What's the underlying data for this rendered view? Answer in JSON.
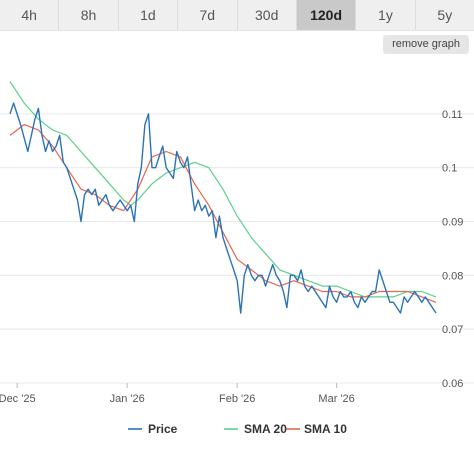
{
  "tabs": [
    {
      "label": "4h",
      "active": false
    },
    {
      "label": "8h",
      "active": false
    },
    {
      "label": "1d",
      "active": false
    },
    {
      "label": "7d",
      "active": false
    },
    {
      "label": "30d",
      "active": false
    },
    {
      "label": "120d",
      "active": true
    },
    {
      "label": "1y",
      "active": false
    },
    {
      "label": "5y",
      "active": false
    }
  ],
  "remove_graph_label": "remove graph",
  "colors": {
    "price": "#2b73b6",
    "sma20": "#5dd08a",
    "sma10": "#e8654f",
    "grid": "#e9e9e9"
  },
  "chart_data": {
    "type": "line",
    "title": "",
    "xlabel": "",
    "ylabel": "",
    "xlim": [
      0,
      120
    ],
    "ylim": [
      0.06,
      0.12
    ],
    "y_ticks": [
      0.06,
      0.07,
      0.08,
      0.09,
      0.1,
      0.11
    ],
    "y_tick_labels": [
      "0.06",
      "0.07",
      "0.08",
      "0.09",
      "0.1",
      "0.11"
    ],
    "x_ticks": [
      {
        "x": 2,
        "label": "Dec '25"
      },
      {
        "x": 33,
        "label": "Jan '26"
      },
      {
        "x": 64,
        "label": "Feb '26"
      },
      {
        "x": 92,
        "label": "Mar '26"
      }
    ],
    "grid": true,
    "legend_position": "bottom-center",
    "series": [
      {
        "name": "Price",
        "x": [
          0,
          1,
          3,
          5,
          7,
          8,
          9,
          10,
          11,
          12,
          13,
          14,
          15,
          16,
          17,
          18,
          19,
          20,
          21,
          22,
          23,
          24,
          25,
          26,
          27,
          28,
          29,
          30,
          31,
          32,
          33,
          34,
          35,
          36,
          37,
          38,
          39,
          40,
          41,
          42,
          43,
          44,
          45,
          46,
          47,
          48,
          49,
          50,
          51,
          52,
          53,
          54,
          55,
          56,
          57,
          58,
          59,
          60,
          61,
          62,
          63,
          64,
          65,
          66,
          67,
          68,
          69,
          70,
          71,
          72,
          73,
          74,
          75,
          76,
          77,
          78,
          79,
          80,
          81,
          82,
          83,
          84,
          85,
          86,
          87,
          88,
          89,
          90,
          91,
          92,
          93,
          94,
          95,
          96,
          97,
          98,
          99,
          100,
          101,
          102,
          103,
          104,
          105,
          106,
          107,
          108,
          109,
          110,
          111,
          112,
          113,
          114,
          115,
          116,
          117,
          118,
          119,
          120
        ],
        "y": [
          0.11,
          0.112,
          0.108,
          0.103,
          0.109,
          0.111,
          0.106,
          0.103,
          0.105,
          0.103,
          0.104,
          0.106,
          0.101,
          0.1,
          0.098,
          0.096,
          0.094,
          0.09,
          0.095,
          0.096,
          0.095,
          0.096,
          0.093,
          0.094,
          0.095,
          0.093,
          0.092,
          0.093,
          0.094,
          0.093,
          0.092,
          0.093,
          0.09,
          0.097,
          0.1,
          0.108,
          0.11,
          0.1,
          0.1,
          0.102,
          0.104,
          0.1,
          0.099,
          0.098,
          0.103,
          0.101,
          0.1,
          0.102,
          0.097,
          0.092,
          0.094,
          0.092,
          0.093,
          0.091,
          0.092,
          0.087,
          0.091,
          0.087,
          0.085,
          0.083,
          0.081,
          0.079,
          0.073,
          0.08,
          0.082,
          0.08,
          0.079,
          0.08,
          0.08,
          0.078,
          0.08,
          0.082,
          0.08,
          0.079,
          0.077,
          0.074,
          0.08,
          0.08,
          0.079,
          0.081,
          0.078,
          0.077,
          0.078,
          0.077,
          0.076,
          0.075,
          0.074,
          0.078,
          0.076,
          0.075,
          0.077,
          0.076,
          0.076,
          0.077,
          0.075,
          0.074,
          0.076,
          0.075,
          0.076,
          0.077,
          0.077,
          0.081,
          0.079,
          0.077,
          0.075,
          0.075,
          0.074,
          0.073,
          0.076,
          0.075,
          0.076,
          0.077,
          0.076,
          0.075,
          0.076,
          0.075,
          0.074,
          0.073
        ],
        "color": "#2b73b6"
      },
      {
        "name": "SMA 20",
        "x": [
          0,
          4,
          8,
          12,
          16,
          20,
          24,
          28,
          32,
          34,
          36,
          40,
          44,
          48,
          52,
          56,
          60,
          64,
          68,
          72,
          76,
          80,
          84,
          88,
          92,
          96,
          100,
          104,
          108,
          112,
          116,
          120
        ],
        "y": [
          0.116,
          0.112,
          0.109,
          0.107,
          0.106,
          0.103,
          0.1,
          0.097,
          0.094,
          0.093,
          0.094,
          0.097,
          0.099,
          0.1,
          0.101,
          0.1,
          0.096,
          0.091,
          0.087,
          0.084,
          0.081,
          0.08,
          0.079,
          0.078,
          0.078,
          0.077,
          0.076,
          0.076,
          0.076,
          0.077,
          0.077,
          0.076
        ],
        "color": "#5dd08a"
      },
      {
        "name": "SMA 10",
        "x": [
          0,
          4,
          8,
          12,
          16,
          20,
          24,
          28,
          32,
          36,
          40,
          44,
          48,
          52,
          56,
          60,
          64,
          68,
          72,
          76,
          80,
          84,
          88,
          92,
          96,
          100,
          104,
          108,
          112,
          116,
          120
        ],
        "y": [
          0.106,
          0.108,
          0.107,
          0.104,
          0.1,
          0.096,
          0.095,
          0.093,
          0.092,
          0.096,
          0.102,
          0.103,
          0.102,
          0.097,
          0.093,
          0.088,
          0.083,
          0.081,
          0.079,
          0.078,
          0.079,
          0.078,
          0.077,
          0.077,
          0.076,
          0.076,
          0.077,
          0.077,
          0.077,
          0.076,
          0.075
        ],
        "color": "#e8654f"
      }
    ]
  }
}
